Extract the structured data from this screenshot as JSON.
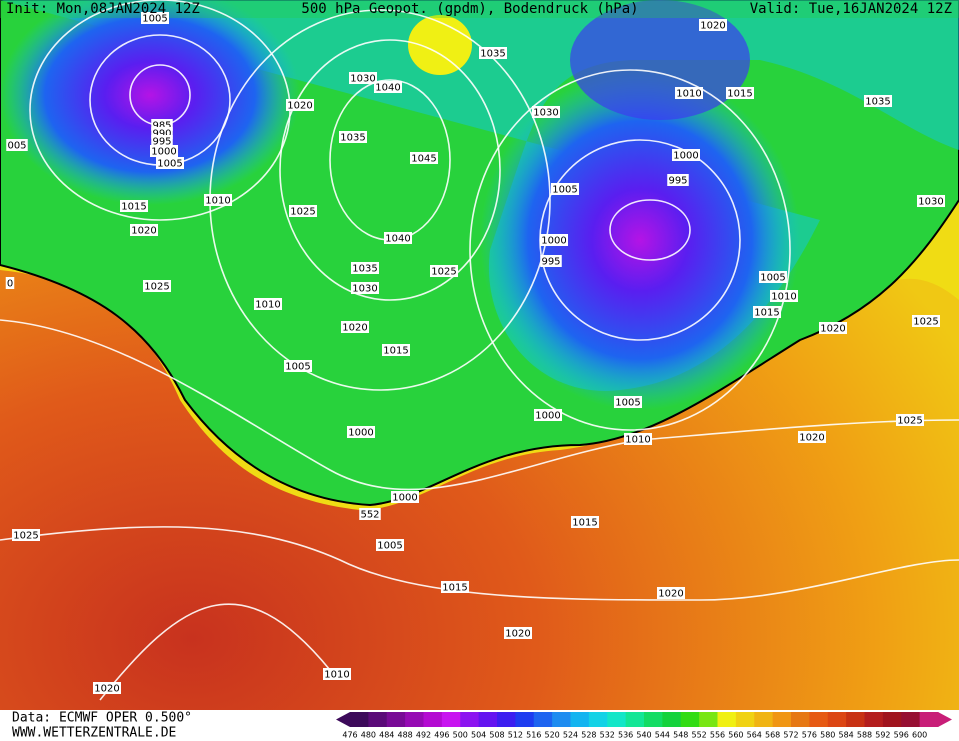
{
  "header": {
    "init": "Init: Mon,08JAN2024 12Z",
    "title": "500 hPa Geopot. (gpdm), Bodendruck (hPa)",
    "valid": "Valid: Tue,16JAN2024 12Z"
  },
  "footer": {
    "data": "Data: ECMWF OPER 0.500°",
    "site": "WWW.WETTERZENTRALE.DE"
  },
  "legend": {
    "labels": [
      476,
      480,
      484,
      488,
      492,
      496,
      500,
      504,
      508,
      512,
      516,
      520,
      524,
      528,
      532,
      536,
      540,
      544,
      548,
      552,
      556,
      560,
      564,
      568,
      572,
      576,
      580,
      584,
      588,
      592,
      596,
      600
    ],
    "colors": [
      "#3c0a5a",
      "#5a0a78",
      "#780a96",
      "#960ab4",
      "#b40ad2",
      "#c814f0",
      "#8c14f0",
      "#6414f0",
      "#3c1ef0",
      "#1e3cf0",
      "#1e64f0",
      "#1e8cf0",
      "#14b4f0",
      "#14d2e6",
      "#14e6c8",
      "#14e696",
      "#14dc64",
      "#14d23c",
      "#32dc14",
      "#78e614",
      "#f0f014",
      "#f0d214",
      "#f0b414",
      "#f09614",
      "#e67814",
      "#e65a14",
      "#dc4614",
      "#c83214",
      "#b41e1e",
      "#a0141e",
      "#960f32",
      "#c81e78"
    ]
  },
  "isobar_labels": [
    "1005",
    "985",
    "990",
    "995",
    "1000",
    "1005",
    "005",
    "1020",
    "1030",
    "1040",
    "1035",
    "1045",
    "1025",
    "1040",
    "1035",
    "1030",
    "1025",
    "1010",
    "1015",
    "1020",
    "1025",
    "1010",
    "1020",
    "1015",
    "1005",
    "1000",
    "1000",
    "552",
    "1005",
    "1015",
    "1010",
    "1020",
    "1025",
    "1035",
    "1030",
    "1020",
    "1010",
    "1015",
    "1000",
    "995",
    "1005",
    "1000",
    "995",
    "1035",
    "1030",
    "1005",
    "1010",
    "1015",
    "1020",
    "1025",
    "1025",
    "1020",
    "1000",
    "1005",
    "1010",
    "1015",
    "1020",
    "1020",
    "0"
  ]
}
